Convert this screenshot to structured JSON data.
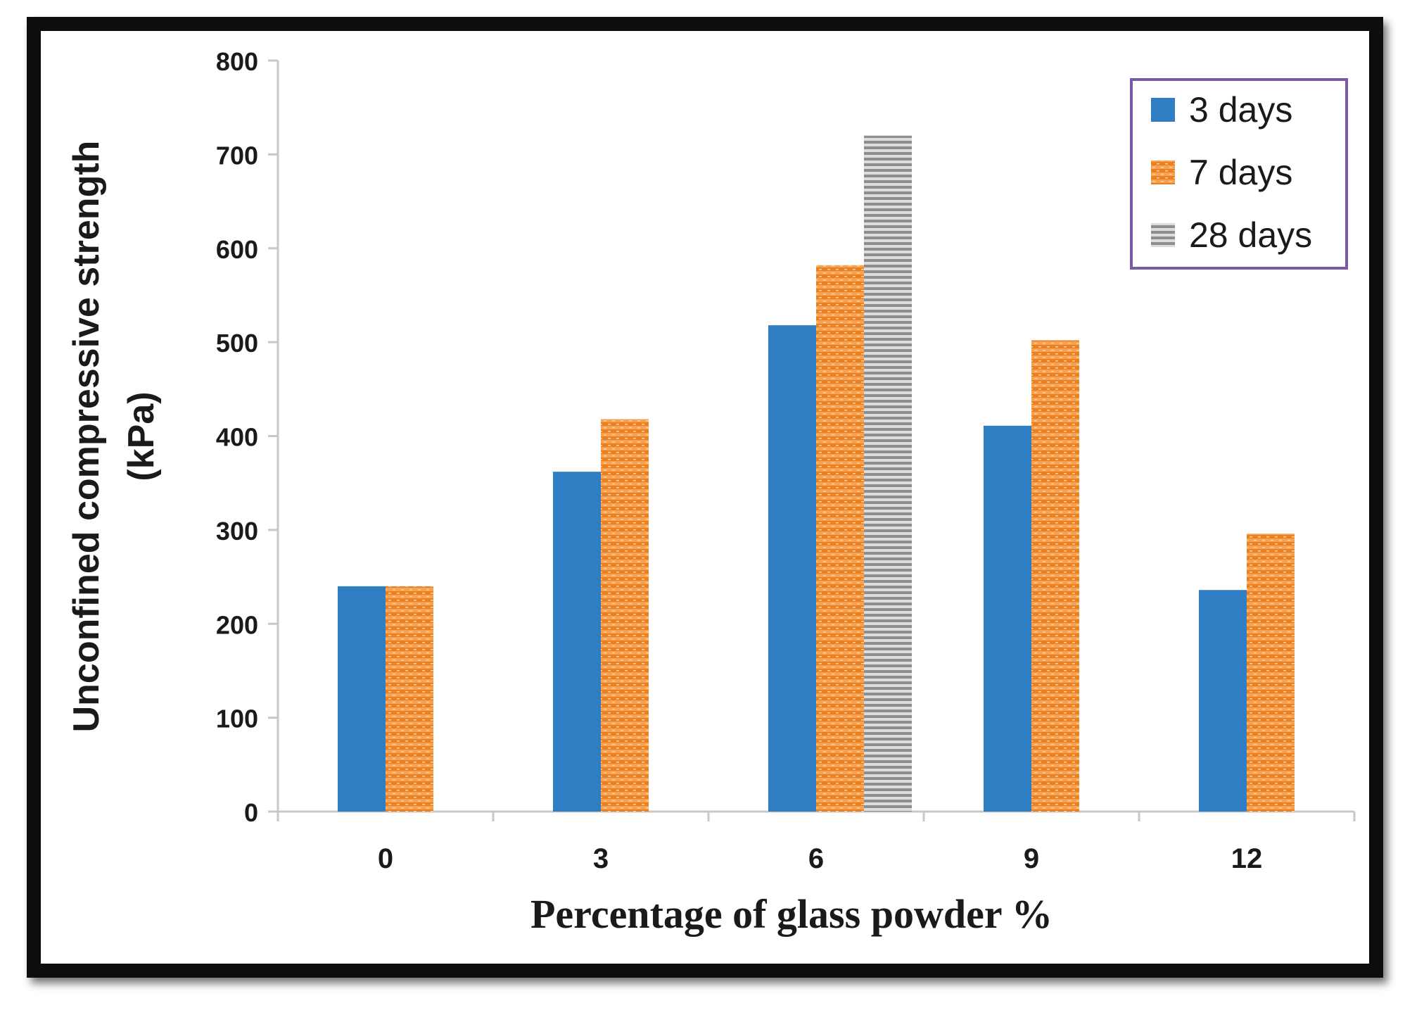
{
  "chart_data": {
    "type": "bar",
    "title": "",
    "xlabel": "Percentage of  glass powder %",
    "ylabel_line1": "Unconfined compressive strength",
    "ylabel_line2": "(kPa)",
    "categories": [
      "0",
      "3",
      "6",
      "9",
      "12"
    ],
    "ylim": [
      0,
      800
    ],
    "yticks": [
      0,
      100,
      200,
      300,
      400,
      500,
      600,
      700,
      800
    ],
    "ytick_labels": [
      "0",
      "100",
      "200",
      "300",
      "400",
      "500",
      "600",
      "700",
      "800"
    ],
    "grid": false,
    "legend_position": "top-right",
    "series": [
      {
        "name": "3 days",
        "values": [
          240,
          362,
          518,
          411,
          236
        ],
        "color": "#2f7ec3",
        "pattern": "solid"
      },
      {
        "name": "7 days",
        "values": [
          240,
          418,
          582,
          502,
          296
        ],
        "color": "#f08a2c",
        "pattern": "orange-stripes"
      },
      {
        "name": "28 days",
        "values": [
          null,
          null,
          720,
          null,
          null
        ],
        "color": "#9a9a9a",
        "pattern": "gray-stripes"
      }
    ]
  },
  "colors": {
    "frame": "#111111",
    "axis": "#c8c8c8",
    "legend_border": "#7a5aa6",
    "text": "#1a1a1a"
  }
}
